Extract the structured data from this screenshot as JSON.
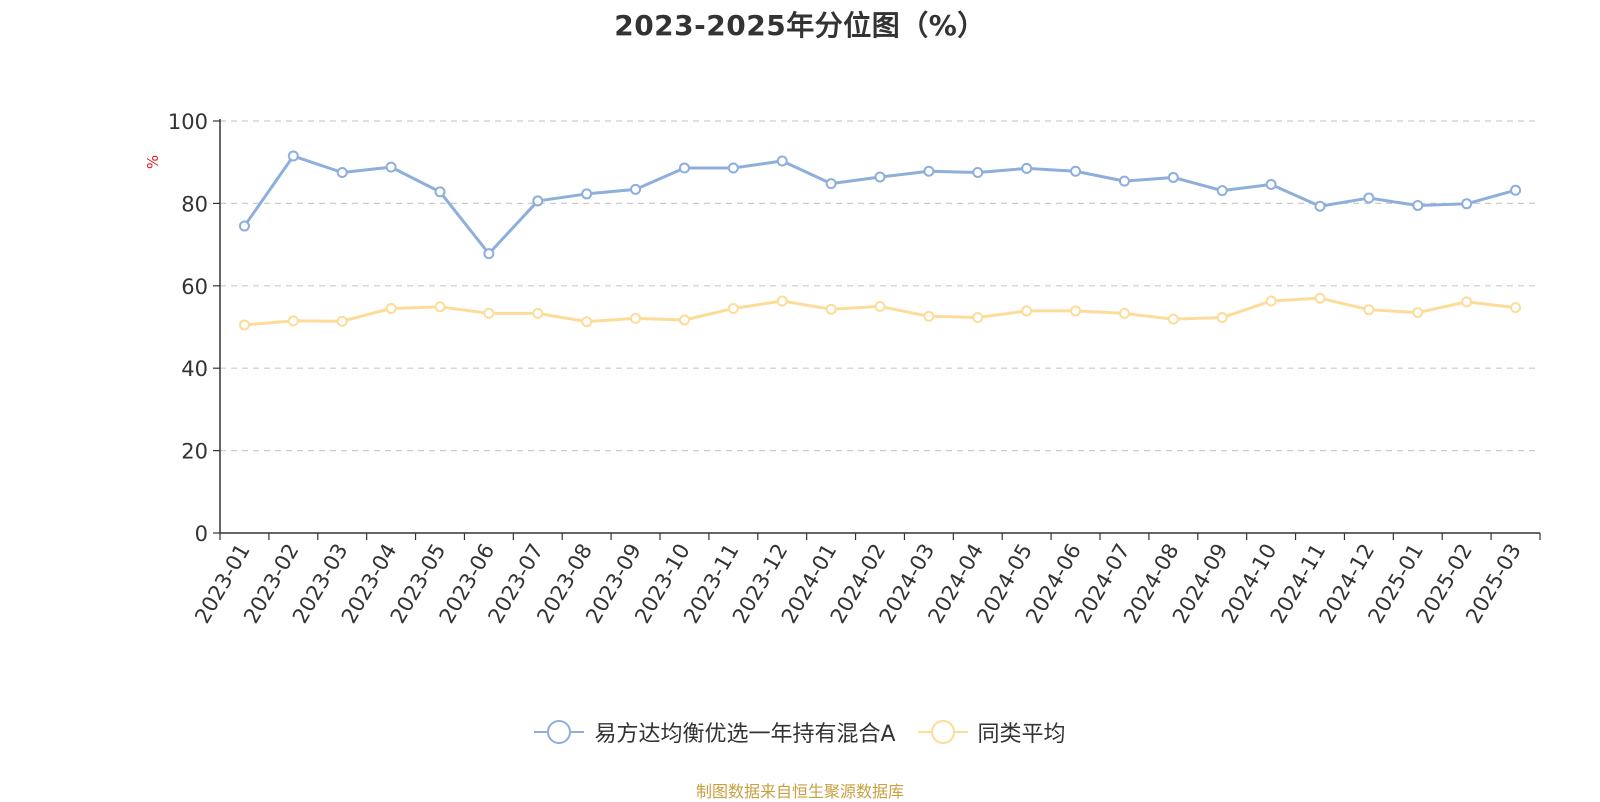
{
  "title": "2023-2025年分位图（%）",
  "source_note": "制图数据来自恒生聚源数据库",
  "chart_data": {
    "type": "line",
    "title": "2023-2025年分位图（%）",
    "ylabel": "%",
    "ylim": [
      0,
      100
    ],
    "yticks": [
      "0",
      "20",
      "40",
      "60",
      "80",
      "100"
    ],
    "grid": true,
    "legend_position": "bottom-center",
    "categories": [
      "2023-01",
      "2023-02",
      "2023-03",
      "2023-04",
      "2023-05",
      "2023-06",
      "2023-07",
      "2023-08",
      "2023-09",
      "2023-10",
      "2023-11",
      "2023-12",
      "2024-01",
      "2024-02",
      "2024-03",
      "2024-04",
      "2024-05",
      "2024-06",
      "2024-07",
      "2024-08",
      "2024-09",
      "2024-10",
      "2024-11",
      "2024-12",
      "2025-01",
      "2025-02",
      "2025-03"
    ],
    "series": [
      {
        "name": "易方达均衡优选一年持有混合A",
        "color": "#8eaedb",
        "values": [
          74.5,
          91.5,
          87.5,
          88.8,
          82.8,
          67.8,
          80.6,
          82.3,
          83.4,
          88.6,
          88.6,
          90.3,
          84.8,
          86.4,
          87.8,
          87.5,
          88.5,
          87.8,
          85.4,
          86.3,
          83.1,
          84.6,
          79.3,
          81.3,
          79.5,
          79.9,
          83.2
        ]
      },
      {
        "name": "同类平均",
        "color": "#fddc99",
        "values": [
          50.5,
          51.5,
          51.4,
          54.5,
          54.9,
          53.3,
          53.3,
          51.3,
          52.1,
          51.7,
          54.5,
          56.3,
          54.3,
          55.0,
          52.6,
          52.3,
          53.9,
          53.9,
          53.3,
          51.9,
          52.3,
          56.3,
          57.0,
          54.2,
          53.5,
          56.1,
          54.7
        ]
      }
    ]
  }
}
